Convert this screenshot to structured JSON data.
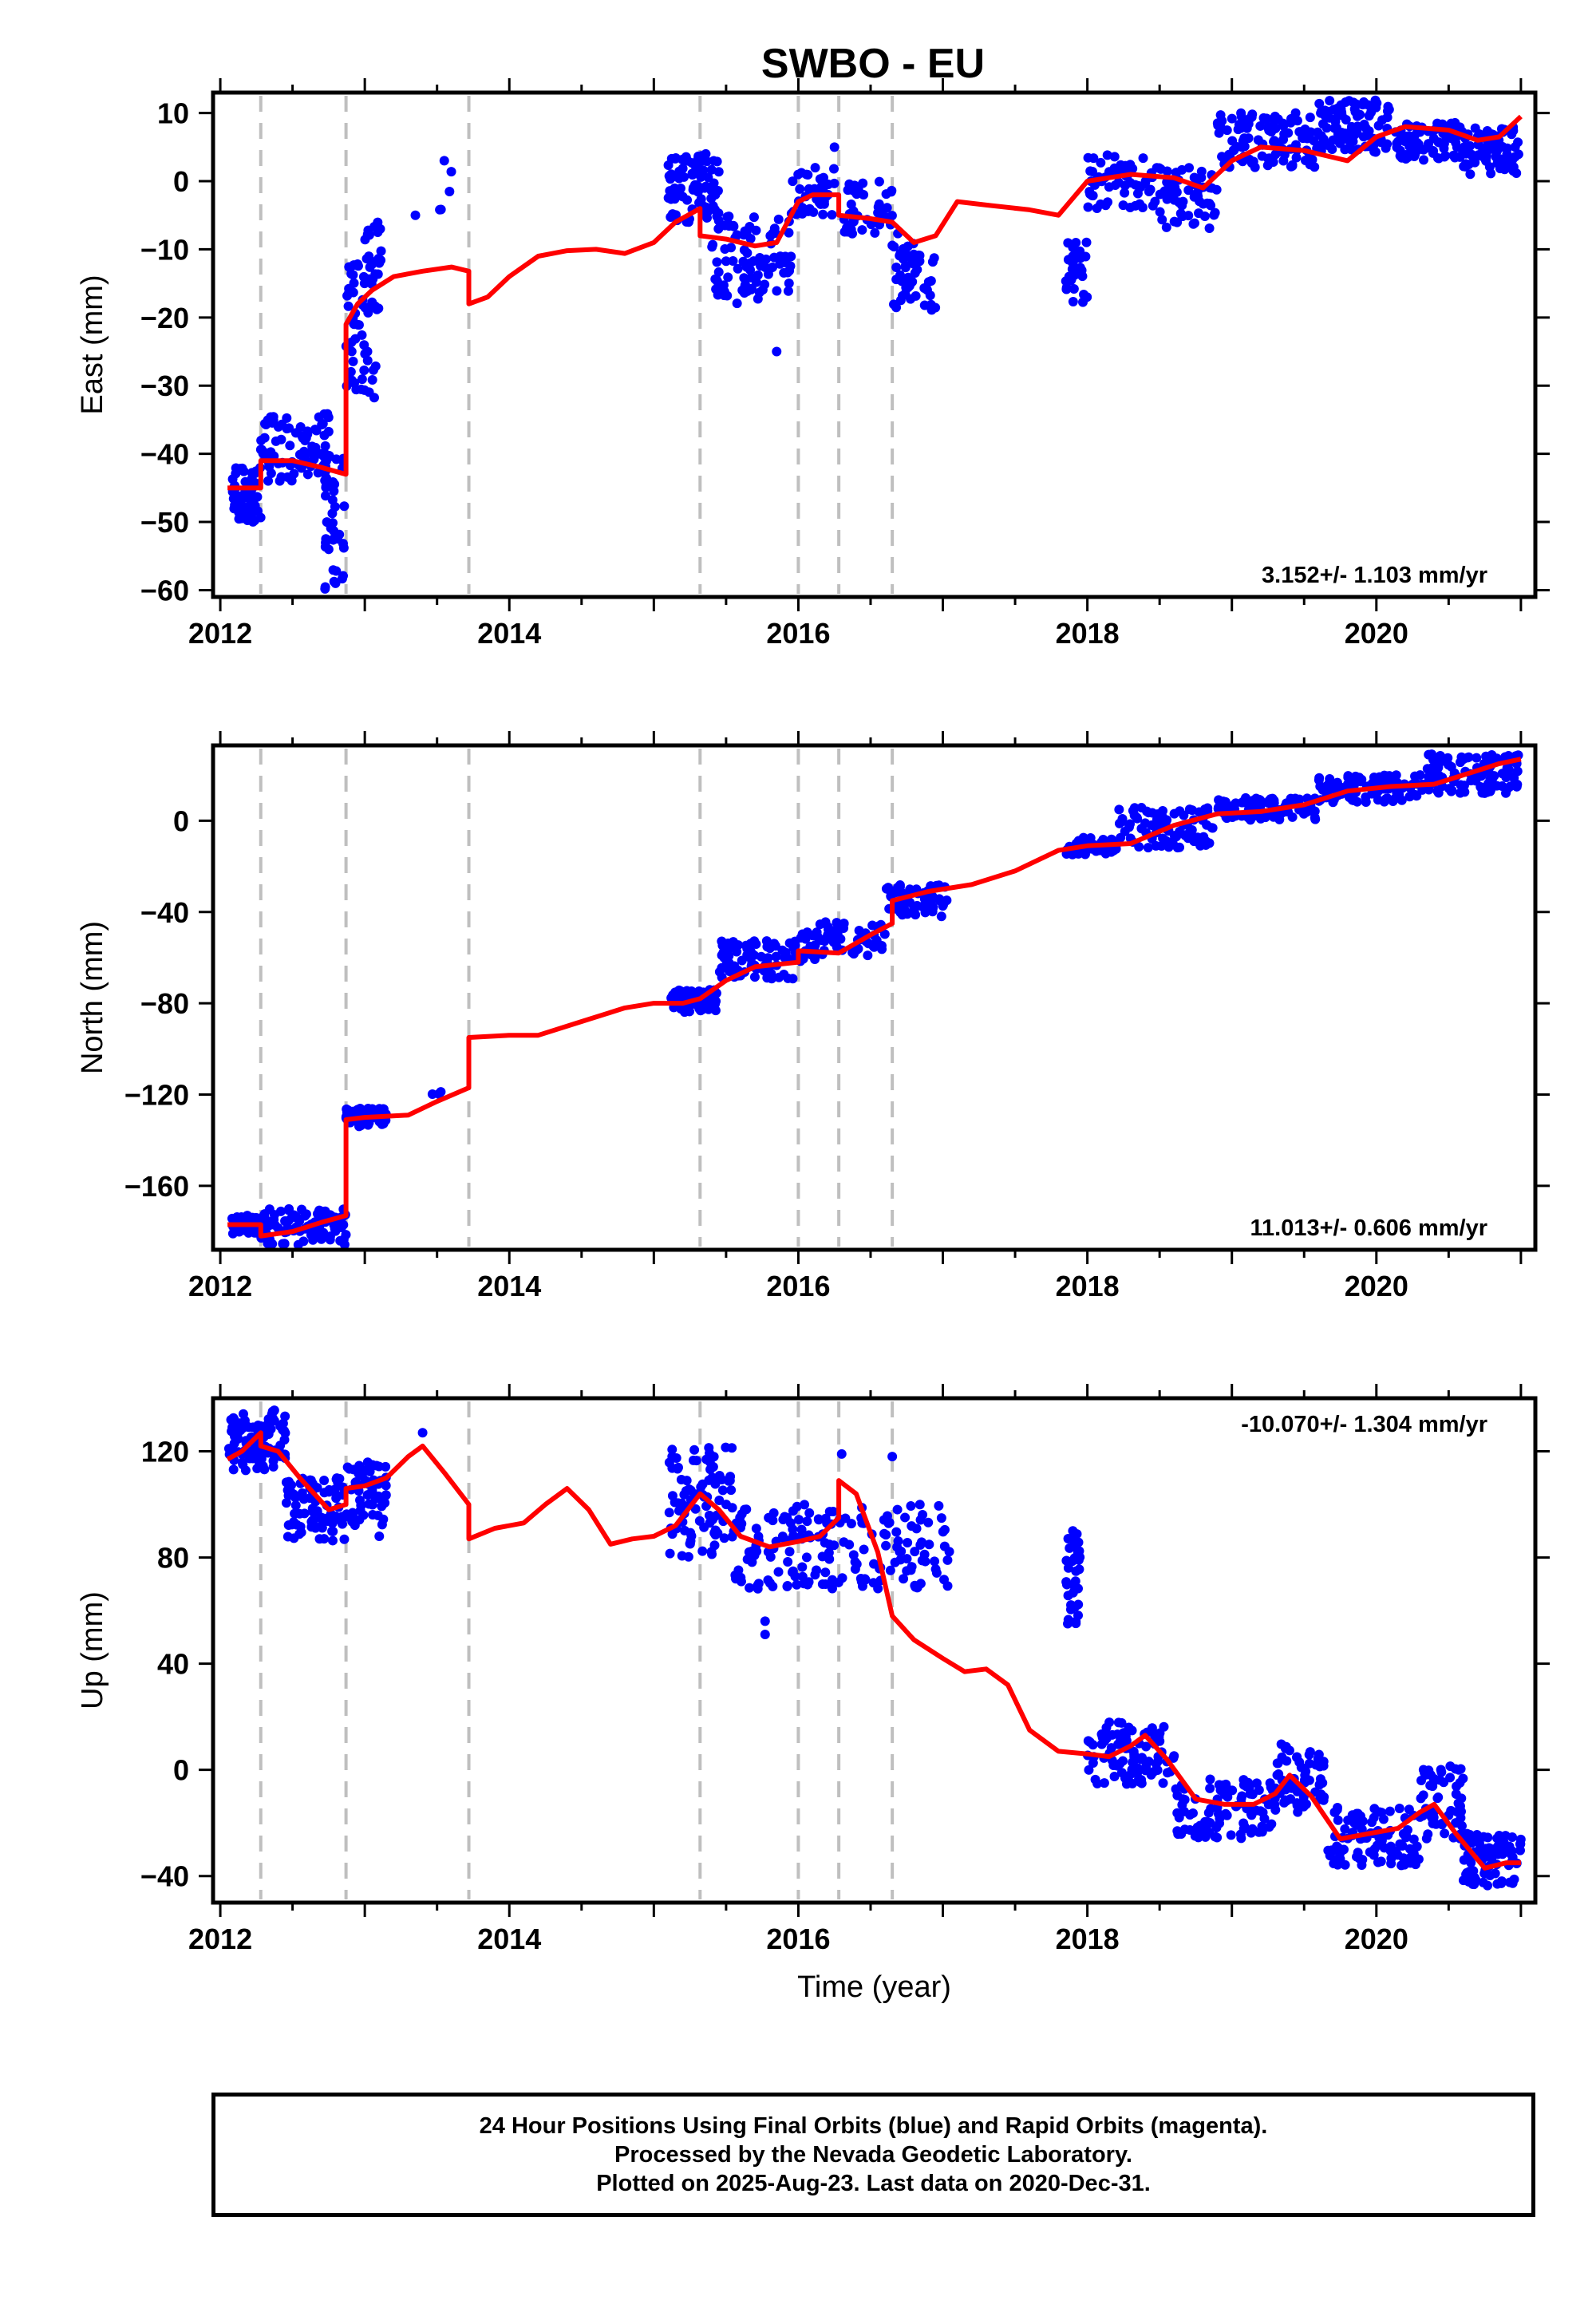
{
  "title": "SWBO - EU",
  "caption": {
    "lines": [
      "24 Hour Positions Using Final Orbits (blue) and Rapid Orbits (magenta).",
      "Processed by the Nevada Geodetic Laboratory.",
      "Plotted on 2025-Aug-23. Last data on 2020-Dec-31."
    ]
  },
  "colors": {
    "points": "#0000ff",
    "model": "#ff0000",
    "events": "#bfbfbf",
    "frame": "#000000"
  },
  "chart_data": [
    {
      "type": "scatter",
      "name": "east",
      "ylabel": "East (mm)",
      "xlabel": "",
      "xlim": [
        2011.95,
        2021.1
      ],
      "ylim": [
        -61,
        13
      ],
      "xticks": [
        2012,
        2014,
        2016,
        2018,
        2020
      ],
      "yticks": [
        10,
        0,
        -10,
        -20,
        -30,
        -40,
        -50,
        -60
      ],
      "rate_label": "3.152+/- 1.103 mm/yr",
      "rate_position": "bottom-right",
      "event_lines": [
        2012.28,
        2012.87,
        2013.72,
        2015.32,
        2016.0,
        2016.28,
        2016.65
      ],
      "model_line": [
        [
          2012.05,
          -45
        ],
        [
          2012.28,
          -45
        ],
        [
          2012.28,
          -41
        ],
        [
          2012.5,
          -41
        ],
        [
          2012.7,
          -42
        ],
        [
          2012.87,
          -43
        ],
        [
          2012.87,
          -21
        ],
        [
          2012.95,
          -18
        ],
        [
          2013.05,
          -16
        ],
        [
          2013.2,
          -14
        ],
        [
          2013.4,
          -13.2
        ],
        [
          2013.6,
          -12.6
        ],
        [
          2013.72,
          -13.2
        ],
        [
          2013.72,
          -18
        ],
        [
          2013.85,
          -17
        ],
        [
          2014.0,
          -14
        ],
        [
          2014.2,
          -11
        ],
        [
          2014.4,
          -10.2
        ],
        [
          2014.6,
          -10
        ],
        [
          2014.8,
          -10.6
        ],
        [
          2015.0,
          -9
        ],
        [
          2015.15,
          -6
        ],
        [
          2015.32,
          -4
        ],
        [
          2015.32,
          -8
        ],
        [
          2015.5,
          -8.5
        ],
        [
          2015.7,
          -9.5
        ],
        [
          2015.85,
          -9
        ],
        [
          2016.0,
          -3
        ],
        [
          2016.1,
          -2
        ],
        [
          2016.28,
          -2
        ],
        [
          2016.28,
          -5
        ],
        [
          2016.5,
          -5.5
        ],
        [
          2016.65,
          -6
        ],
        [
          2016.8,
          -9
        ],
        [
          2016.95,
          -8
        ],
        [
          2017.1,
          -3
        ],
        [
          2017.3,
          -3.5
        ],
        [
          2017.6,
          -4.2
        ],
        [
          2017.8,
          -5
        ],
        [
          2018.0,
          0
        ],
        [
          2018.3,
          1
        ],
        [
          2018.6,
          0.5
        ],
        [
          2018.8,
          -1
        ],
        [
          2019.0,
          3
        ],
        [
          2019.2,
          5
        ],
        [
          2019.5,
          4.5
        ],
        [
          2019.8,
          3
        ],
        [
          2020.0,
          6.5
        ],
        [
          2020.2,
          8
        ],
        [
          2020.5,
          7.5
        ],
        [
          2020.7,
          6
        ],
        [
          2020.85,
          6.5
        ],
        [
          2021.0,
          9.5
        ]
      ],
      "clusters": [
        {
          "x": [
            2012.08,
            2012.28
          ],
          "y": [
            -50,
            -42
          ],
          "n": 60
        },
        {
          "x": [
            2012.28,
            2012.75
          ],
          "y": [
            -44,
            -34
          ],
          "n": 90
        },
        {
          "x": [
            2012.72,
            2012.86
          ],
          "y": [
            -60,
            -40
          ],
          "n": 40
        },
        {
          "x": [
            2012.87,
            2013.1
          ],
          "y": [
            -34,
            -12
          ],
          "n": 60
        },
        {
          "x": [
            2013.0,
            2013.12
          ],
          "y": [
            -14,
            -6
          ],
          "n": 20
        },
        {
          "x": [
            2013.45,
            2013.6
          ],
          "y": [
            -5,
            3
          ],
          "n": 4
        },
        {
          "x": [
            2015.1,
            2015.45
          ],
          "y": [
            -6,
            4
          ],
          "n": 90
        },
        {
          "x": [
            2015.4,
            2015.95
          ],
          "y": [
            -18,
            -5
          ],
          "n": 90
        },
        {
          "x": [
            2015.95,
            2016.25
          ],
          "y": [
            -5,
            2
          ],
          "n": 40
        },
        {
          "x": [
            2016.3,
            2016.65
          ],
          "y": [
            -8,
            0
          ],
          "n": 40
        },
        {
          "x": [
            2016.65,
            2016.95
          ],
          "y": [
            -19,
            -7
          ],
          "n": 50
        },
        {
          "x": [
            2017.85,
            2018.0
          ],
          "y": [
            -18,
            -8
          ],
          "n": 30
        },
        {
          "x": [
            2018.0,
            2018.5
          ],
          "y": [
            -4,
            4
          ],
          "n": 60
        },
        {
          "x": [
            2018.5,
            2018.9
          ],
          "y": [
            -7,
            2
          ],
          "n": 60
        },
        {
          "x": [
            2018.9,
            2019.6
          ],
          "y": [
            2,
            10
          ],
          "n": 110
        },
        {
          "x": [
            2019.6,
            2020.1
          ],
          "y": [
            4,
            12
          ],
          "n": 100
        },
        {
          "x": [
            2020.1,
            2020.6
          ],
          "y": [
            3,
            9
          ],
          "n": 80
        },
        {
          "x": [
            2020.6,
            2021.0
          ],
          "y": [
            1,
            8
          ],
          "n": 80
        }
      ],
      "outliers": [
        [
          2015.85,
          -25
        ],
        [
          2013.55,
          3
        ],
        [
          2013.35,
          -5
        ],
        [
          2016.25,
          5
        ]
      ]
    },
    {
      "type": "scatter",
      "name": "north",
      "ylabel": "North (mm)",
      "xlabel": "",
      "xlim": [
        2011.95,
        2021.1
      ],
      "ylim": [
        -188,
        33
      ],
      "xticks": [
        2012,
        2014,
        2016,
        2018,
        2020
      ],
      "yticks": [
        0,
        -40,
        -80,
        -120,
        -160
      ],
      "rate_label": "11.013+/- 0.606 mm/yr",
      "rate_position": "bottom-right",
      "event_lines": [
        2012.28,
        2012.87,
        2013.72,
        2015.32,
        2016.0,
        2016.28,
        2016.65
      ],
      "model_line": [
        [
          2012.05,
          -177
        ],
        [
          2012.28,
          -177
        ],
        [
          2012.28,
          -182
        ],
        [
          2012.5,
          -180
        ],
        [
          2012.7,
          -176
        ],
        [
          2012.87,
          -173
        ],
        [
          2012.87,
          -131
        ],
        [
          2013.0,
          -130
        ],
        [
          2013.3,
          -129
        ],
        [
          2013.5,
          -123
        ],
        [
          2013.72,
          -117
        ],
        [
          2013.72,
          -95
        ],
        [
          2014.0,
          -94
        ],
        [
          2014.2,
          -94
        ],
        [
          2014.5,
          -88
        ],
        [
          2014.8,
          -82
        ],
        [
          2015.0,
          -80
        ],
        [
          2015.2,
          -80
        ],
        [
          2015.32,
          -78
        ],
        [
          2015.5,
          -70
        ],
        [
          2015.7,
          -64
        ],
        [
          2016.0,
          -62
        ],
        [
          2016.0,
          -57
        ],
        [
          2016.28,
          -58
        ],
        [
          2016.5,
          -50
        ],
        [
          2016.65,
          -45
        ],
        [
          2016.65,
          -35
        ],
        [
          2016.9,
          -31
        ],
        [
          2017.2,
          -28
        ],
        [
          2017.5,
          -22
        ],
        [
          2017.8,
          -13
        ],
        [
          2018.0,
          -11
        ],
        [
          2018.3,
          -10
        ],
        [
          2018.6,
          -2
        ],
        [
          2018.9,
          3
        ],
        [
          2019.2,
          4
        ],
        [
          2019.5,
          7
        ],
        [
          2019.8,
          13
        ],
        [
          2020.1,
          15
        ],
        [
          2020.4,
          16
        ],
        [
          2020.7,
          22
        ],
        [
          2020.85,
          25
        ],
        [
          2021.0,
          27
        ]
      ],
      "clusters": [
        {
          "x": [
            2012.08,
            2012.28
          ],
          "y": [
            -181,
            -173
          ],
          "n": 60
        },
        {
          "x": [
            2012.28,
            2012.87
          ],
          "y": [
            -186,
            -170
          ],
          "n": 90
        },
        {
          "x": [
            2012.87,
            2013.15
          ],
          "y": [
            -134,
            -126
          ],
          "n": 60
        },
        {
          "x": [
            2013.45,
            2013.6
          ],
          "y": [
            -124,
            -118
          ],
          "n": 4
        },
        {
          "x": [
            2015.1,
            2015.45
          ],
          "y": [
            -84,
            -74
          ],
          "n": 70
        },
        {
          "x": [
            2015.45,
            2016.0
          ],
          "y": [
            -70,
            -52
          ],
          "n": 80
        },
        {
          "x": [
            2016.0,
            2016.6
          ],
          "y": [
            -62,
            -44
          ],
          "n": 70
        },
        {
          "x": [
            2016.6,
            2017.05
          ],
          "y": [
            -42,
            -28
          ],
          "n": 60
        },
        {
          "x": [
            2017.85,
            2018.2
          ],
          "y": [
            -15,
            -7
          ],
          "n": 50
        },
        {
          "x": [
            2018.2,
            2018.9
          ],
          "y": [
            -12,
            6
          ],
          "n": 90
        },
        {
          "x": [
            2018.9,
            2019.6
          ],
          "y": [
            0,
            10
          ],
          "n": 90
        },
        {
          "x": [
            2019.6,
            2020.3
          ],
          "y": [
            8,
            20
          ],
          "n": 100
        },
        {
          "x": [
            2020.3,
            2021.0
          ],
          "y": [
            12,
            30
          ],
          "n": 110
        }
      ],
      "outliers": []
    },
    {
      "type": "scatter",
      "name": "up",
      "ylabel": "Up (mm)",
      "xlabel": "Time (year)",
      "xlim": [
        2011.95,
        2021.1
      ],
      "ylim": [
        -50,
        140
      ],
      "xticks": [
        2012,
        2014,
        2016,
        2018,
        2020
      ],
      "yticks": [
        120,
        80,
        40,
        0,
        -40
      ],
      "rate_label": "-10.070+/- 1.304 mm/yr",
      "rate_position": "top-right",
      "event_lines": [
        2012.28,
        2012.87,
        2013.72,
        2015.32,
        2016.0,
        2016.28,
        2016.65
      ],
      "model_line": [
        [
          2012.05,
          117
        ],
        [
          2012.15,
          120
        ],
        [
          2012.28,
          127
        ],
        [
          2012.28,
          122
        ],
        [
          2012.4,
          120
        ],
        [
          2012.55,
          110
        ],
        [
          2012.75,
          98
        ],
        [
          2012.87,
          100
        ],
        [
          2012.87,
          106
        ],
        [
          2013.0,
          107
        ],
        [
          2013.15,
          110
        ],
        [
          2013.3,
          118
        ],
        [
          2013.4,
          122
        ],
        [
          2013.55,
          112
        ],
        [
          2013.72,
          100
        ],
        [
          2013.72,
          87
        ],
        [
          2013.9,
          91
        ],
        [
          2014.1,
          93
        ],
        [
          2014.25,
          100
        ],
        [
          2014.4,
          106
        ],
        [
          2014.55,
          98
        ],
        [
          2014.7,
          85
        ],
        [
          2014.85,
          87
        ],
        [
          2015.0,
          88
        ],
        [
          2015.15,
          92
        ],
        [
          2015.32,
          104
        ],
        [
          2015.45,
          98
        ],
        [
          2015.6,
          88
        ],
        [
          2015.8,
          84
        ],
        [
          2016.0,
          86
        ],
        [
          2016.15,
          88
        ],
        [
          2016.28,
          95
        ],
        [
          2016.28,
          109
        ],
        [
          2016.4,
          104
        ],
        [
          2016.55,
          82
        ],
        [
          2016.65,
          58
        ],
        [
          2016.8,
          49
        ],
        [
          2017.0,
          42
        ],
        [
          2017.15,
          37
        ],
        [
          2017.3,
          38
        ],
        [
          2017.45,
          32
        ],
        [
          2017.6,
          15
        ],
        [
          2017.8,
          7
        ],
        [
          2018.0,
          6
        ],
        [
          2018.15,
          5
        ],
        [
          2018.3,
          9
        ],
        [
          2018.4,
          13
        ],
        [
          2018.55,
          4
        ],
        [
          2018.75,
          -11
        ],
        [
          2018.95,
          -13
        ],
        [
          2019.15,
          -13
        ],
        [
          2019.3,
          -9
        ],
        [
          2019.4,
          -2
        ],
        [
          2019.55,
          -10
        ],
        [
          2019.75,
          -26
        ],
        [
          2019.95,
          -24
        ],
        [
          2020.15,
          -22
        ],
        [
          2020.3,
          -16
        ],
        [
          2020.4,
          -13
        ],
        [
          2020.55,
          -24
        ],
        [
          2020.75,
          -37
        ],
        [
          2020.9,
          -35
        ],
        [
          2021.0,
          -35
        ]
      ],
      "clusters": [
        {
          "x": [
            2012.05,
            2012.45
          ],
          "y": [
            112,
            136
          ],
          "n": 90
        },
        {
          "x": [
            2012.45,
            2012.87
          ],
          "y": [
            86,
            110
          ],
          "n": 80
        },
        {
          "x": [
            2012.87,
            2013.15
          ],
          "y": [
            92,
            116
          ],
          "n": 60
        },
        {
          "x": [
            2015.1,
            2015.55
          ],
          "y": [
            80,
            122
          ],
          "n": 90
        },
        {
          "x": [
            2015.55,
            2016.3
          ],
          "y": [
            68,
            100
          ],
          "n": 100
        },
        {
          "x": [
            2016.3,
            2017.05
          ],
          "y": [
            68,
            100
          ],
          "n": 80
        },
        {
          "x": [
            2017.85,
            2017.95
          ],
          "y": [
            55,
            92
          ],
          "n": 35
        },
        {
          "x": [
            2018.0,
            2018.6
          ],
          "y": [
            -6,
            18
          ],
          "n": 90
        },
        {
          "x": [
            2018.6,
            2019.3
          ],
          "y": [
            -26,
            -3
          ],
          "n": 100
        },
        {
          "x": [
            2019.3,
            2019.65
          ],
          "y": [
            -16,
            10
          ],
          "n": 60
        },
        {
          "x": [
            2019.65,
            2020.3
          ],
          "y": [
            -36,
            -14
          ],
          "n": 100
        },
        {
          "x": [
            2020.3,
            2020.6
          ],
          "y": [
            -26,
            2
          ],
          "n": 60
        },
        {
          "x": [
            2020.6,
            2021.0
          ],
          "y": [
            -44,
            -24
          ],
          "n": 80
        }
      ],
      "outliers": [
        [
          2015.77,
          51
        ],
        [
          2015.77,
          56
        ],
        [
          2013.4,
          127
        ],
        [
          2016.3,
          119
        ],
        [
          2016.65,
          118
        ],
        [
          2013.1,
          88
        ]
      ]
    }
  ]
}
